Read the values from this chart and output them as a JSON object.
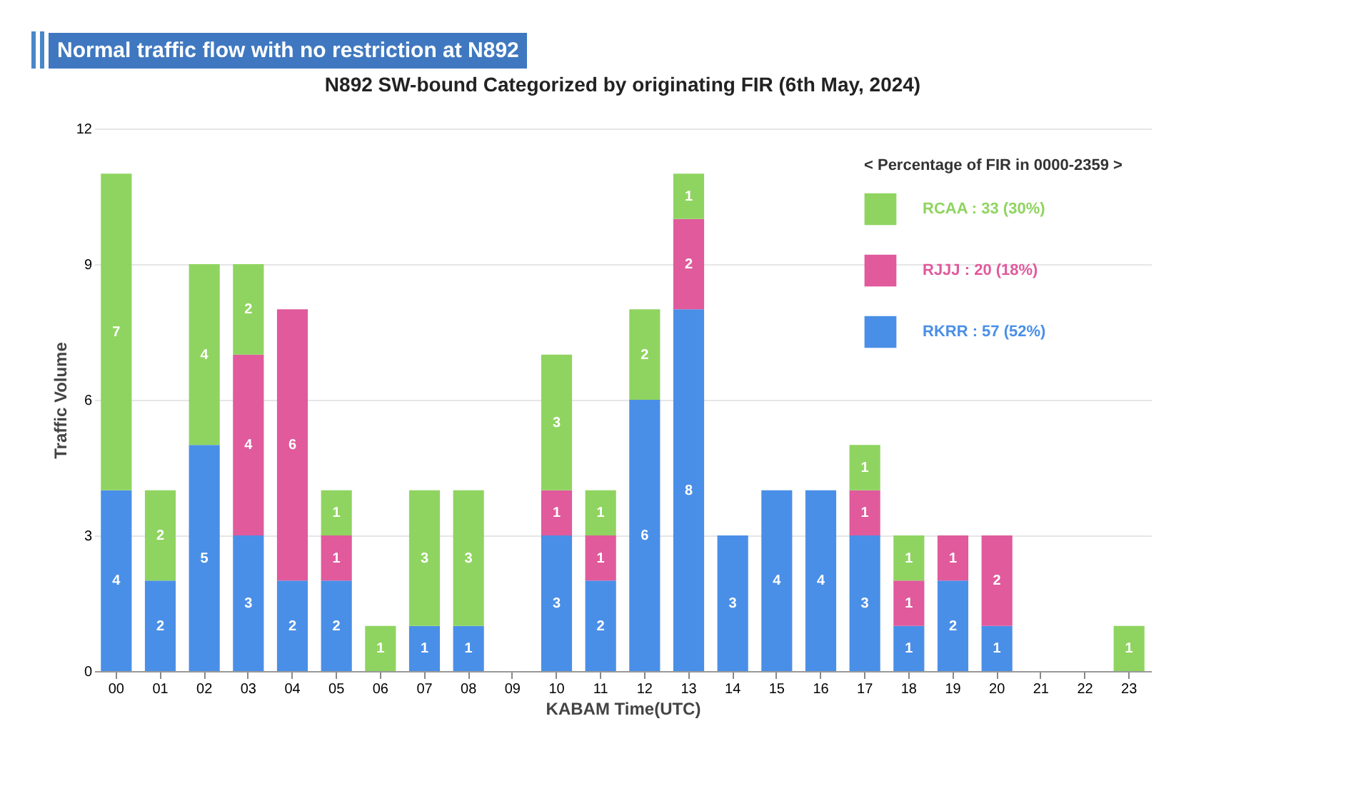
{
  "chart_data": {
    "type": "bar",
    "title": "N892 SW-bound Categorized by originating FIR (6th May, 2024)",
    "annotations": [
      "Normal traffic flow with no restriction at N892"
    ],
    "xlabel": "KABAM Time(UTC)",
    "ylabel": "Traffic Volume",
    "legend_title": "< Percentage of FIR in 0000-2359 >",
    "categories": [
      "00",
      "01",
      "02",
      "03",
      "04",
      "05",
      "06",
      "07",
      "08",
      "09",
      "10",
      "11",
      "12",
      "13",
      "14",
      "15",
      "16",
      "17",
      "18",
      "19",
      "20",
      "21",
      "22",
      "23"
    ],
    "stacked": true,
    "data_labels": true,
    "grid": "y",
    "legend": "top right",
    "ylim": [
      0,
      12
    ],
    "yticks": [
      0,
      3,
      6,
      9,
      12
    ],
    "series": [
      {
        "name": "RKRR : 57 (52%)",
        "color": "#4a8fe7",
        "values": [
          4,
          2,
          5,
          3,
          2,
          2,
          null,
          1,
          1,
          null,
          3,
          2,
          6,
          8,
          3,
          4,
          4,
          3,
          1,
          2,
          1,
          null,
          null,
          null
        ]
      },
      {
        "name": "RJJJ : 20 (18%)",
        "color": "#e05a9c",
        "values": [
          null,
          null,
          null,
          4,
          6,
          1,
          null,
          null,
          null,
          null,
          1,
          1,
          null,
          2,
          null,
          null,
          null,
          1,
          1,
          1,
          2,
          null,
          null,
          null
        ]
      },
      {
        "name": "RCAA : 33 (30%)",
        "color": "#8fd460",
        "values": [
          7,
          2,
          4,
          2,
          null,
          1,
          1,
          3,
          3,
          null,
          3,
          1,
          2,
          1,
          null,
          null,
          null,
          1,
          1,
          null,
          null,
          null,
          null,
          1
        ]
      }
    ]
  }
}
